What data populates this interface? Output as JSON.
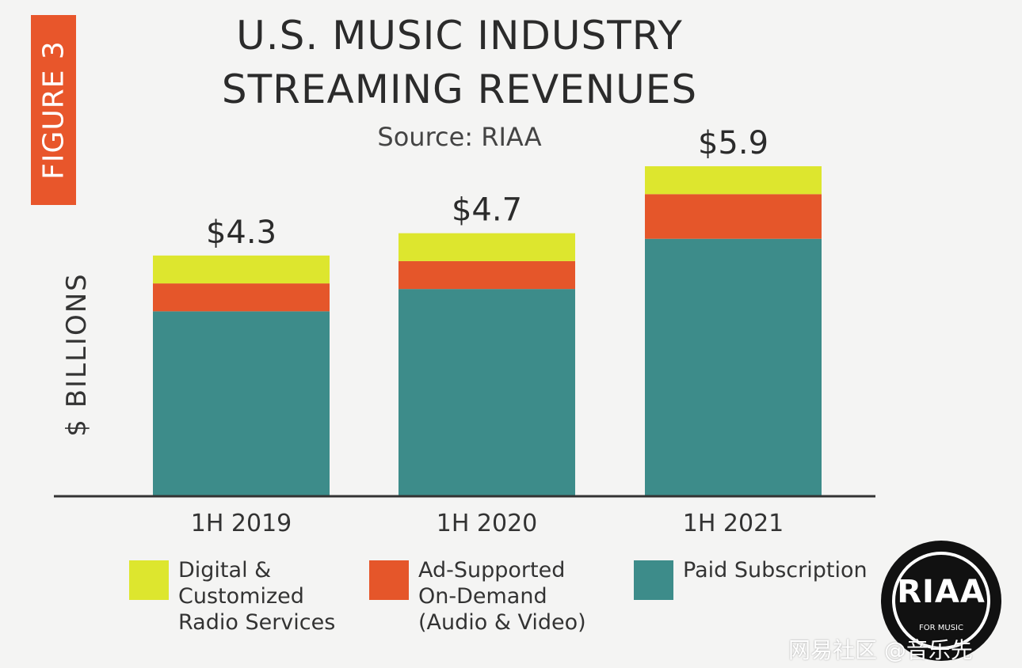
{
  "figure_tag": "FIGURE 3",
  "logo": {
    "text": "RIAA",
    "subtext": "FOR MUSIC"
  },
  "watermark": "网易社区 @音乐先",
  "colors": {
    "paid_subscription": "#3d8c8a",
    "ad_supported": "#e5562a",
    "digital_radio": "#dde62e",
    "figure_tag": "#e8562b"
  },
  "chart_data": {
    "type": "bar",
    "stacked": true,
    "title": "U.S. MUSIC INDUSTRY STREAMING REVENUES",
    "title_lines": [
      "U.S. MUSIC INDUSTRY",
      "STREAMING REVENUES"
    ],
    "subtitle": "Source: RIAA",
    "ylabel": "$ BILLIONS",
    "xlabel": "",
    "categories": [
      "1H 2019",
      "1H 2020",
      "1H 2021"
    ],
    "totals": [
      4.3,
      4.7,
      5.9
    ],
    "total_labels": [
      "$4.3",
      "$4.7",
      "$5.9"
    ],
    "ylim": [
      0,
      7.0
    ],
    "grid": false,
    "series": [
      {
        "name": "Paid Subscription",
        "values": [
          3.3,
          3.7,
          4.6
        ],
        "color": "#3d8c8a"
      },
      {
        "name": "Ad-Supported On-Demand (Audio & Video)",
        "values": [
          0.5,
          0.5,
          0.8
        ],
        "color": "#e5562a"
      },
      {
        "name": "Digital & Customized Radio Services",
        "values": [
          0.5,
          0.5,
          0.5
        ],
        "color": "#dde62e"
      }
    ],
    "legend": [
      {
        "label": "Digital &\nCustomized\nRadio Services",
        "color": "#dde62e"
      },
      {
        "label": "Ad-Supported\nOn-Demand\n(Audio & Video)",
        "color": "#e5562a"
      },
      {
        "label": "Paid Subscription",
        "color": "#3d8c8a"
      }
    ],
    "legend_position": "bottom"
  }
}
